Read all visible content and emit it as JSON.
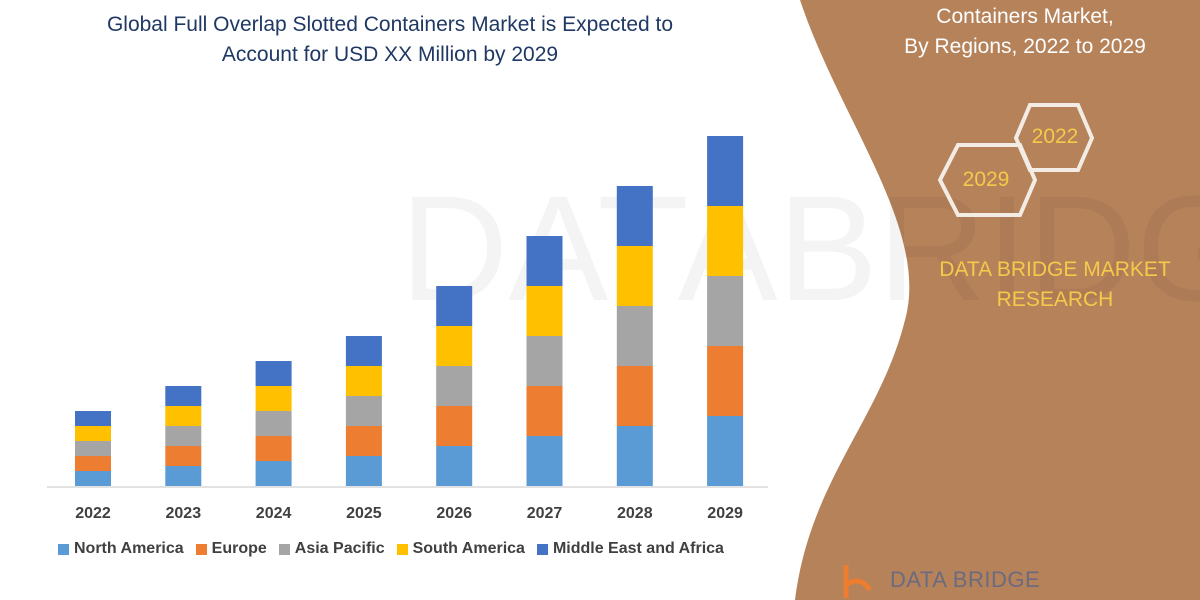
{
  "title_line1": "Global Full Overlap Slotted Containers Market is Expected to",
  "title_line2": "Account for USD XX Million by 2029",
  "side_panel": {
    "title_line1": "Containers Market,",
    "title_line2": "By Regions, 2022 to 2029",
    "hex_2022": "2022",
    "hex_2029": "2029",
    "brand_line1": "DATA BRIDGE MARKET",
    "brand_line2": "RESEARCH",
    "logo_text": "DATA BRIDGE",
    "panel_color": "#B5825A",
    "accent_color": "#F5C94A"
  },
  "chart_data": {
    "type": "bar",
    "stacked": true,
    "categories": [
      "2022",
      "2023",
      "2024",
      "2025",
      "2026",
      "2027",
      "2028",
      "2029"
    ],
    "series": [
      {
        "name": "North America",
        "color": "#5B9BD5",
        "values": [
          1.5,
          2,
          2.5,
          3,
          4,
          5,
          6,
          7
        ]
      },
      {
        "name": "Europe",
        "color": "#ED7D31",
        "values": [
          1.5,
          2,
          2.5,
          3,
          4,
          5,
          6,
          7
        ]
      },
      {
        "name": "Asia Pacific",
        "color": "#A5A5A5",
        "values": [
          1.5,
          2,
          2.5,
          3,
          4,
          5,
          6,
          7
        ]
      },
      {
        "name": "South America",
        "color": "#FFC000",
        "values": [
          1.5,
          2,
          2.5,
          3,
          4,
          5,
          6,
          7
        ]
      },
      {
        "name": "Middle East and Africa",
        "color": "#4472C4",
        "values": [
          1.5,
          2,
          2.5,
          3,
          4,
          5,
          6,
          7
        ]
      }
    ],
    "legend_position": "bottom",
    "grid": false,
    "y_axis_shown": false
  }
}
